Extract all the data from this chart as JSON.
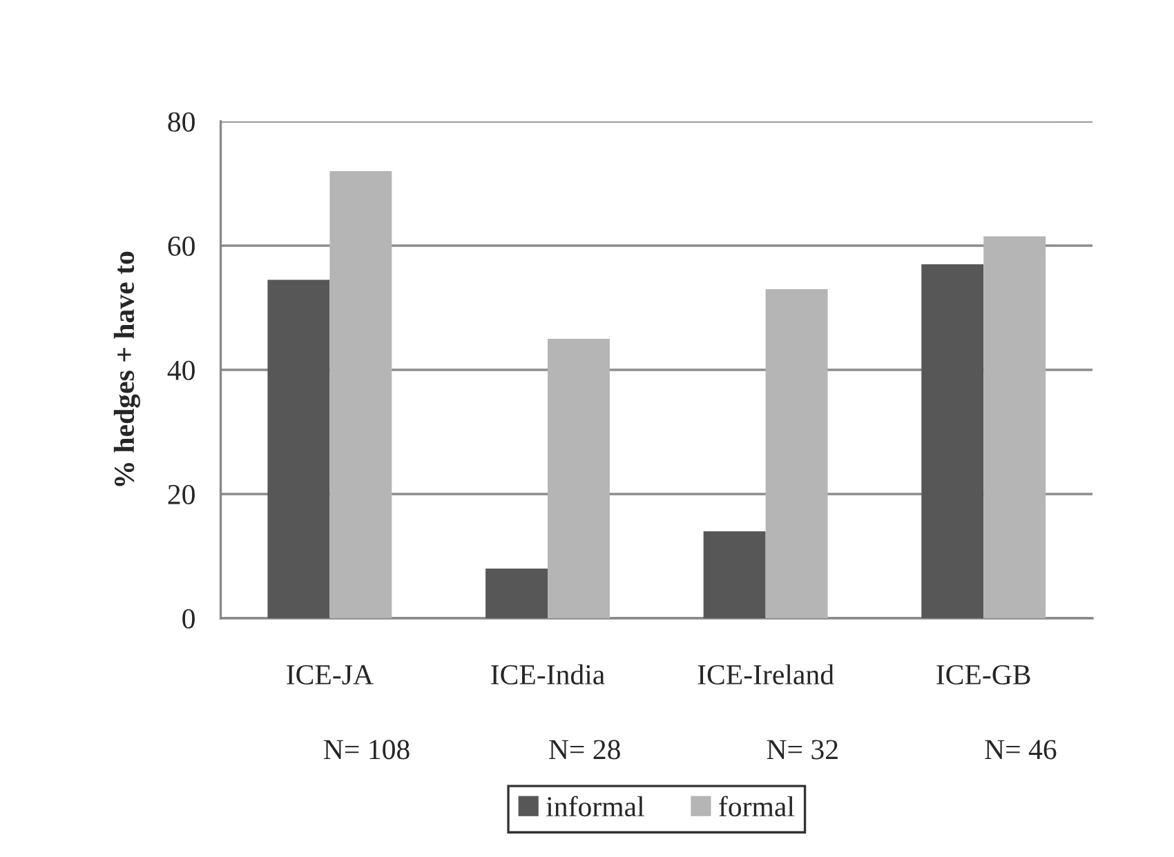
{
  "chart_data": {
    "type": "bar",
    "ylabel": "% hedges + have to",
    "categories": [
      "ICE-JA",
      "ICE-India",
      "ICE-Ireland",
      "ICE-GB"
    ],
    "series": [
      {
        "name": "informal",
        "color": "#575757",
        "values": [
          54.5,
          8,
          14,
          57
        ]
      },
      {
        "name": "formal",
        "color": "#b5b5b5",
        "values": [
          72,
          45,
          53,
          61.5
        ]
      }
    ],
    "ylim": [
      0,
      80
    ],
    "yticks": [
      0,
      20,
      40,
      60,
      80
    ],
    "grid": "y",
    "legend": "bottom",
    "annotations": [
      "N= 108",
      "N= 28",
      "N= 32",
      "N= 46"
    ]
  }
}
